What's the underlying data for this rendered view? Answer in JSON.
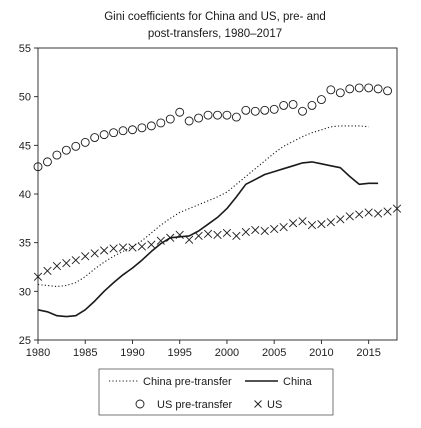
{
  "chart_data": {
    "type": "line",
    "title": "Gini coefficients for China and US, pre- and post-transfers, 1980–2017",
    "title_lines": [
      "Gini coefficients for China and US, pre- and",
      "post-transfers, 1980–2017"
    ],
    "xlabel": "",
    "ylabel": "",
    "xlim": [
      1980,
      2018
    ],
    "ylim": [
      25,
      55
    ],
    "x_ticks": [
      1980,
      1985,
      1990,
      1995,
      2000,
      2005,
      2010,
      2015
    ],
    "y_ticks": [
      25,
      30,
      35,
      40,
      45,
      50,
      55
    ],
    "grid": false,
    "legend_position": "bottom",
    "series": [
      {
        "name": "China pre-transfer",
        "style": "dotted",
        "marker": "none",
        "x": [
          1980,
          1981,
          1982,
          1983,
          1984,
          1985,
          1986,
          1987,
          1988,
          1989,
          1990,
          1991,
          1992,
          1993,
          1994,
          1995,
          1996,
          1997,
          1998,
          1999,
          2000,
          2001,
          2002,
          2003,
          2004,
          2005,
          2006,
          2007,
          2008,
          2009,
          2010,
          2011,
          2012,
          2013,
          2014,
          2015
        ],
        "y": [
          30.7,
          30.6,
          30.5,
          30.6,
          30.9,
          31.5,
          32.3,
          33.0,
          33.6,
          34.1,
          34.6,
          35.2,
          36.0,
          36.8,
          37.5,
          38.1,
          38.5,
          38.9,
          39.3,
          39.7,
          40.2,
          41.0,
          41.8,
          42.6,
          43.4,
          44.2,
          44.9,
          45.4,
          45.9,
          46.3,
          46.6,
          46.9,
          47.0,
          47.0,
          47.0,
          46.9
        ]
      },
      {
        "name": "China",
        "style": "solid",
        "marker": "none",
        "x": [
          1980,
          1981,
          1982,
          1983,
          1984,
          1985,
          1986,
          1987,
          1988,
          1989,
          1990,
          1991,
          1992,
          1993,
          1994,
          1995,
          1996,
          1997,
          1998,
          1999,
          2000,
          2001,
          2002,
          2003,
          2004,
          2005,
          2006,
          2007,
          2008,
          2009,
          2010,
          2011,
          2012,
          2013,
          2014,
          2015,
          2016
        ],
        "y": [
          28.1,
          27.9,
          27.5,
          27.4,
          27.5,
          28.1,
          29.0,
          30.0,
          30.9,
          31.7,
          32.4,
          33.2,
          34.1,
          34.9,
          35.5,
          35.6,
          35.7,
          36.2,
          36.9,
          37.6,
          38.5,
          39.7,
          41.0,
          41.5,
          42.0,
          42.3,
          42.6,
          42.9,
          43.2,
          43.3,
          43.1,
          42.9,
          42.7,
          41.8,
          41.0,
          41.1,
          41.1
        ]
      },
      {
        "name": "US pre-transfer",
        "style": "none",
        "marker": "circle",
        "x": [
          1980,
          1981,
          1982,
          1983,
          1984,
          1985,
          1986,
          1987,
          1988,
          1989,
          1990,
          1991,
          1992,
          1993,
          1994,
          1995,
          1996,
          1997,
          1998,
          1999,
          2000,
          2001,
          2002,
          2003,
          2004,
          2005,
          2006,
          2007,
          2008,
          2009,
          2010,
          2011,
          2012,
          2013,
          2014,
          2015,
          2016,
          2017
        ],
        "y": [
          42.8,
          43.3,
          44.0,
          44.5,
          44.9,
          45.3,
          45.8,
          46.1,
          46.3,
          46.5,
          46.6,
          46.8,
          47.0,
          47.3,
          47.7,
          48.4,
          47.5,
          47.8,
          48.1,
          48.1,
          48.1,
          47.9,
          48.6,
          48.5,
          48.6,
          48.7,
          49.1,
          49.2,
          48.5,
          49.1,
          49.7,
          50.7,
          50.4,
          50.8,
          50.9,
          50.9,
          50.8,
          50.6
        ]
      },
      {
        "name": "US",
        "style": "none",
        "marker": "x",
        "x": [
          1980,
          1981,
          1982,
          1983,
          1984,
          1985,
          1986,
          1987,
          1988,
          1989,
          1990,
          1991,
          1992,
          1993,
          1994,
          1995,
          1996,
          1997,
          1998,
          1999,
          2000,
          2001,
          2002,
          2003,
          2004,
          2005,
          2006,
          2007,
          2008,
          2009,
          2010,
          2011,
          2012,
          2013,
          2014,
          2015,
          2016,
          2017,
          2018
        ],
        "y": [
          31.5,
          32.1,
          32.6,
          32.9,
          33.2,
          33.6,
          33.9,
          34.2,
          34.4,
          34.5,
          34.5,
          34.6,
          34.8,
          35.2,
          35.5,
          35.8,
          35.3,
          35.7,
          35.9,
          35.8,
          36.0,
          35.7,
          36.1,
          36.3,
          36.2,
          36.4,
          36.6,
          37.0,
          37.2,
          36.8,
          36.9,
          37.1,
          37.4,
          37.7,
          37.9,
          38.1,
          38.0,
          38.2,
          38.5
        ]
      }
    ],
    "legend": [
      {
        "label": "China pre-transfer",
        "series": 0
      },
      {
        "label": "China",
        "series": 1
      },
      {
        "label": "US pre-transfer",
        "series": 2
      },
      {
        "label": "US",
        "series": 3
      }
    ],
    "color": "#1a1a1a",
    "axis_color": "#222222"
  }
}
